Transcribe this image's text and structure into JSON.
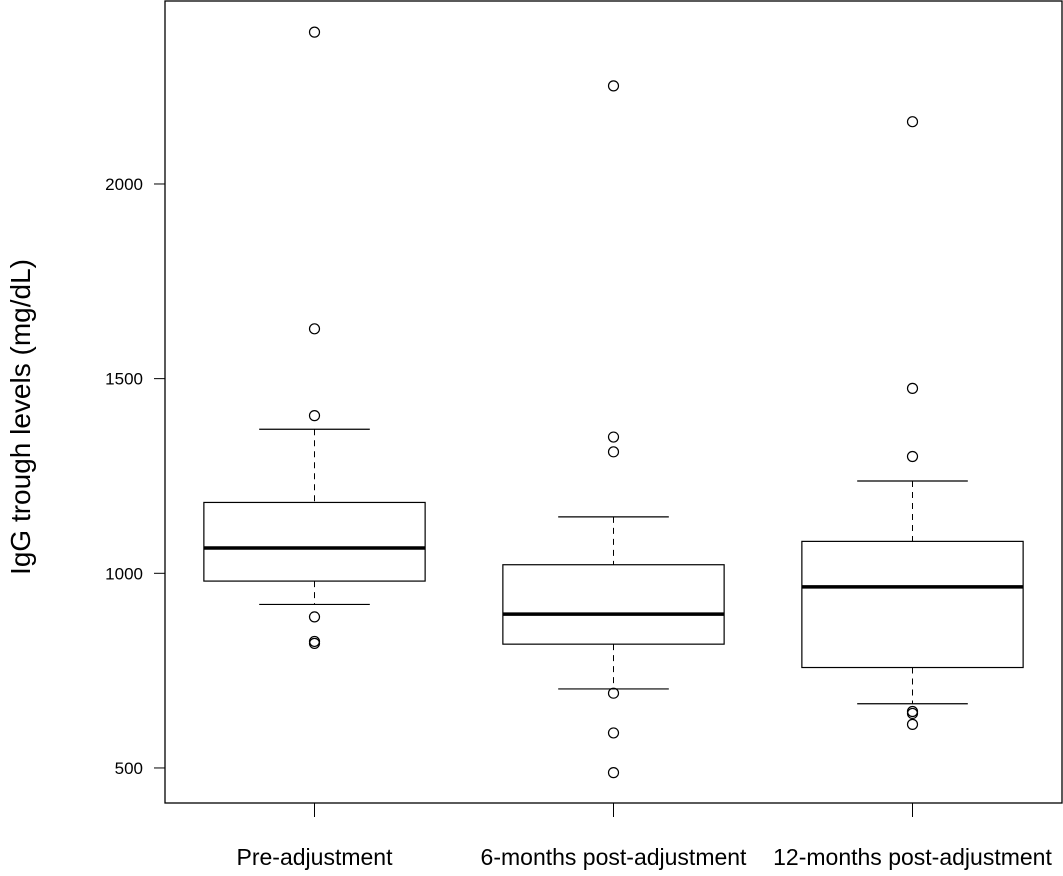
{
  "chart_data": {
    "type": "box",
    "title": "",
    "xlabel": "",
    "ylabel": "IgG trough levels (mg/dL)",
    "categories": [
      "Pre-adjustment",
      "6-months post-adjustment",
      "12-months post-adjustment"
    ],
    "ylim": [
      410,
      2470
    ],
    "yticks": [
      500,
      1000,
      1500,
      2000
    ],
    "grid": false,
    "boxes": [
      {
        "category": "Pre-adjustment",
        "whisker_low": 920,
        "q1": 980,
        "median": 1065,
        "q3": 1182,
        "whisker_high": 1370,
        "outliers": [
          2390,
          1628,
          1405,
          888,
          825,
          820
        ]
      },
      {
        "category": "6-months post-adjustment",
        "whisker_low": 703,
        "q1": 818,
        "median": 895,
        "q3": 1022,
        "whisker_high": 1145,
        "outliers": [
          2252,
          1350,
          1312,
          692,
          590,
          488
        ]
      },
      {
        "category": "12-months post-adjustment",
        "whisker_low": 665,
        "q1": 758,
        "median": 965,
        "q3": 1082,
        "whisker_high": 1237,
        "outliers": [
          2160,
          1475,
          1300,
          645,
          640,
          612
        ]
      }
    ]
  }
}
